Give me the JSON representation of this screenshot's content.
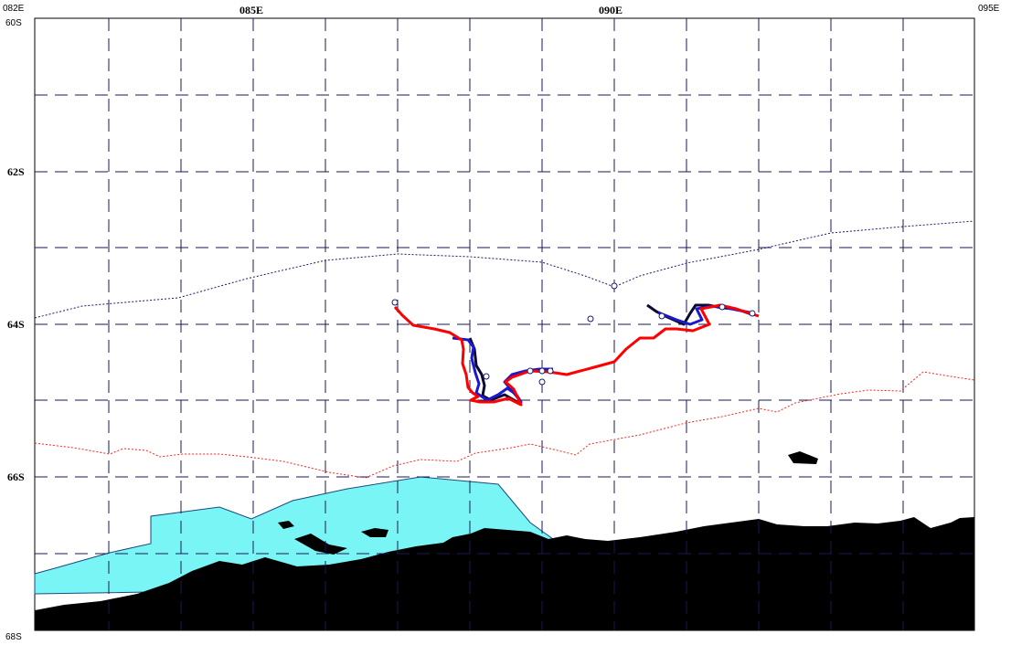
{
  "map": {
    "lon_labels": [
      {
        "id": "082e",
        "text": "082E",
        "style": "small"
      },
      {
        "id": "085e",
        "text": "085E",
        "style": "bold"
      },
      {
        "id": "090e",
        "text": "090E",
        "style": "bold"
      },
      {
        "id": "095e",
        "text": "095E",
        "style": "small"
      }
    ],
    "lat_labels": [
      {
        "id": "60s",
        "text": "60S",
        "style": "small"
      },
      {
        "id": "62s",
        "text": "62S",
        "style": "bold"
      },
      {
        "id": "64s",
        "text": "64S",
        "style": "bold"
      },
      {
        "id": "66s",
        "text": "66S",
        "style": "bold"
      },
      {
        "id": "68s",
        "text": "68S",
        "style": "small"
      }
    ],
    "colors": {
      "grid": "#1a1a55",
      "land": "#000000",
      "ice_shelf": "#79f5f5",
      "ice_shelf_edge": "#1a4a80",
      "track_primary": "#ff0000",
      "track_secondary": "#1a1acc",
      "track_dark": "#0a0a33",
      "boundary_dotted": "#1a1a6b",
      "ice_edge_dotted": "#ff2020",
      "station_marker": "#1a1a6b"
    },
    "layers": [
      "grid",
      "land",
      "ice-shelf",
      "ship-track",
      "station-markers",
      "boundary-line",
      "ice-edge-line"
    ]
  }
}
